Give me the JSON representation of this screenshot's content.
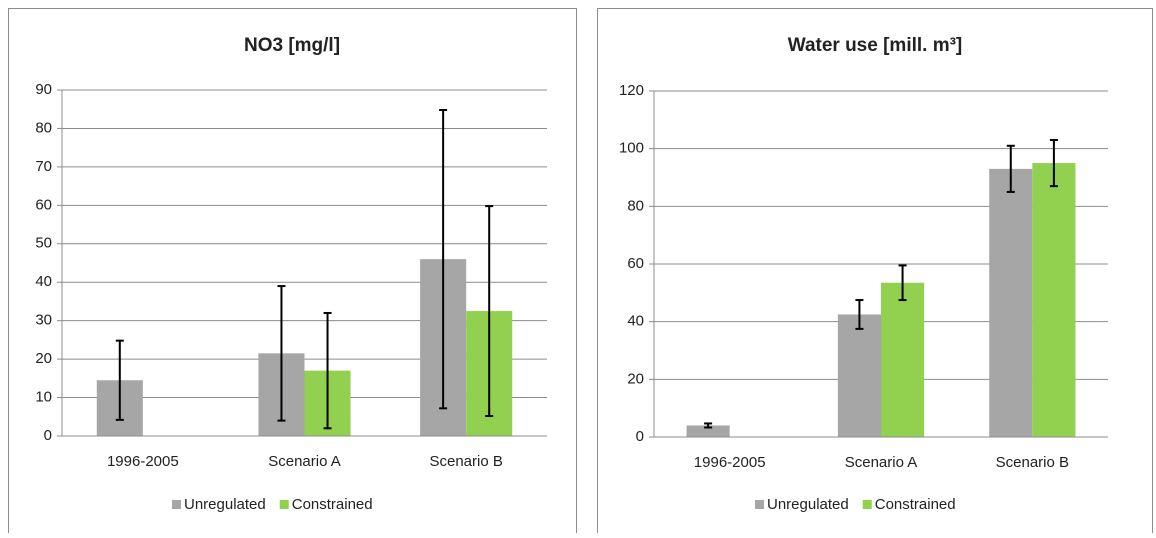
{
  "chart_data": [
    {
      "type": "bar",
      "title": "NO3 [mg/l]",
      "categories": [
        "1996-2005",
        "Scenario A",
        "Scenario B"
      ],
      "series": [
        {
          "name": "Unregulated",
          "color": "#a6a6a6",
          "values": [
            14.5,
            21.5,
            46
          ],
          "errors": [
            10.3,
            17.5,
            38.8
          ]
        },
        {
          "name": "Constrained",
          "color": "#92d050",
          "values": [
            null,
            17,
            32.5
          ],
          "errors": [
            null,
            15,
            27.3
          ]
        }
      ],
      "ylim": [
        0,
        90
      ],
      "yticks": [
        0,
        10,
        20,
        30,
        40,
        50,
        60,
        70,
        80,
        90
      ],
      "grid": true,
      "legend": "bottom"
    },
    {
      "type": "bar",
      "title": "Water use [mill. m³]",
      "categories": [
        "1996-2005",
        "Scenario A",
        "Scenario B"
      ],
      "series": [
        {
          "name": "Unregulated",
          "color": "#a6a6a6",
          "values": [
            4,
            42.5,
            93
          ],
          "errors": [
            0.7,
            5,
            8
          ]
        },
        {
          "name": "Constrained",
          "color": "#92d050",
          "values": [
            null,
            53.5,
            95
          ],
          "errors": [
            null,
            6,
            8
          ]
        }
      ],
      "ylim": [
        0,
        120
      ],
      "yticks": [
        0,
        20,
        40,
        60,
        80,
        100,
        120
      ],
      "grid": true,
      "legend": "bottom"
    }
  ]
}
